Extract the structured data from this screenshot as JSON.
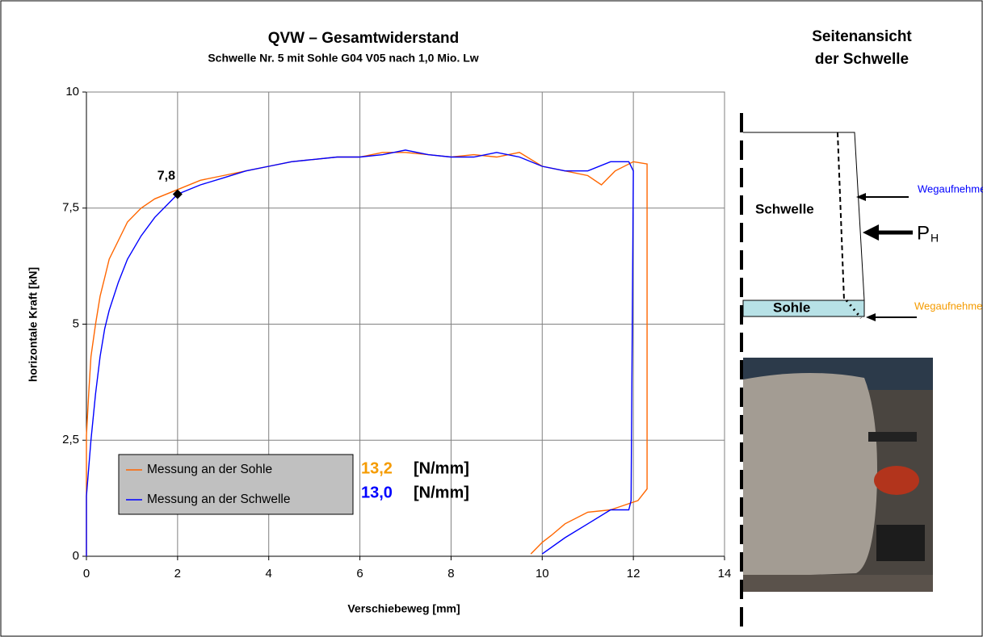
{
  "chart_data": {
    "type": "line",
    "title": "QVW – Gesamtwiderstand",
    "subtitle": "Schwelle Nr. 5 mit Sohle G04 V05 nach 1,0 Mio. Lw",
    "x_label": "Verschiebeweg  [mm]",
    "y_label": "horizontale Kraft [kN]",
    "xlim": [
      0,
      14
    ],
    "ylim": [
      0,
      10
    ],
    "xticks": [
      0,
      2,
      4,
      6,
      8,
      10,
      12,
      14
    ],
    "yticks": [
      0,
      {
        "value": 2.5,
        "label": "2,5"
      },
      5,
      {
        "value": 7.5,
        "label": "7,5"
      },
      10
    ],
    "grid": true,
    "series": [
      {
        "name": "Messung an der Sohle",
        "color": "#ff6600",
        "x": [
          0,
          0,
          0.05,
          0.1,
          0.2,
          0.3,
          0.4,
          0.5,
          0.7,
          0.9,
          1.2,
          1.5,
          2,
          2.5,
          3,
          3.5,
          4,
          4.5,
          5,
          5.5,
          6,
          6.5,
          7,
          7.5,
          8,
          8.5,
          9,
          9.5,
          10,
          10.5,
          11,
          11.3,
          11.6,
          12,
          12.3,
          12.3,
          12.1,
          11.5,
          11,
          10.5,
          10.2,
          10,
          9.75
        ],
        "values": [
          0,
          2.6,
          3.5,
          4.3,
          5.0,
          5.6,
          6.0,
          6.4,
          6.8,
          7.2,
          7.5,
          7.7,
          7.9,
          8.1,
          8.2,
          8.3,
          8.4,
          8.5,
          8.55,
          8.6,
          8.6,
          8.7,
          8.7,
          8.65,
          8.6,
          8.65,
          8.6,
          8.7,
          8.4,
          8.3,
          8.2,
          8.0,
          8.3,
          8.5,
          8.45,
          1.45,
          1.2,
          1.0,
          0.95,
          0.7,
          0.45,
          0.3,
          0.05
        ]
      },
      {
        "name": "Messung an der Schwelle",
        "color": "#0000ff",
        "x": [
          0,
          0,
          0.1,
          0.2,
          0.3,
          0.4,
          0.5,
          0.7,
          0.9,
          1.2,
          1.5,
          2,
          2.5,
          3,
          3.5,
          4,
          4.5,
          5,
          5.5,
          6,
          6.5,
          7,
          7.5,
          8,
          8.5,
          9,
          9.5,
          10,
          10.5,
          11,
          11.5,
          11.9,
          12,
          11.95,
          11.9,
          11.5,
          11,
          10.5,
          10
        ],
        "values": [
          0,
          1.3,
          2.5,
          3.5,
          4.3,
          4.9,
          5.3,
          5.9,
          6.4,
          6.9,
          7.3,
          7.8,
          8.0,
          8.15,
          8.3,
          8.4,
          8.5,
          8.55,
          8.6,
          8.6,
          8.65,
          8.75,
          8.65,
          8.6,
          8.6,
          8.7,
          8.6,
          8.4,
          8.3,
          8.3,
          8.5,
          8.5,
          8.3,
          1.2,
          1.0,
          1.0,
          0.7,
          0.4,
          0.05
        ]
      }
    ],
    "marker": {
      "x": 2,
      "y": 7.8,
      "label": "7,8"
    },
    "stiffness": [
      {
        "text": "13,2",
        "color": "#f59b00"
      },
      {
        "text": "13,0",
        "color": "#0000ff"
      }
    ],
    "stiffness_unit": "[N/mm]"
  },
  "diagram": {
    "title": [
      "Seitenansicht",
      "der Schwelle"
    ],
    "sleeper": "Schwelle",
    "pad": "Sohle",
    "sensor_top": "Wegaufnehmer",
    "sensor_bottom": "Wegaufnehmer",
    "force": "P",
    "force_sub": "H"
  }
}
